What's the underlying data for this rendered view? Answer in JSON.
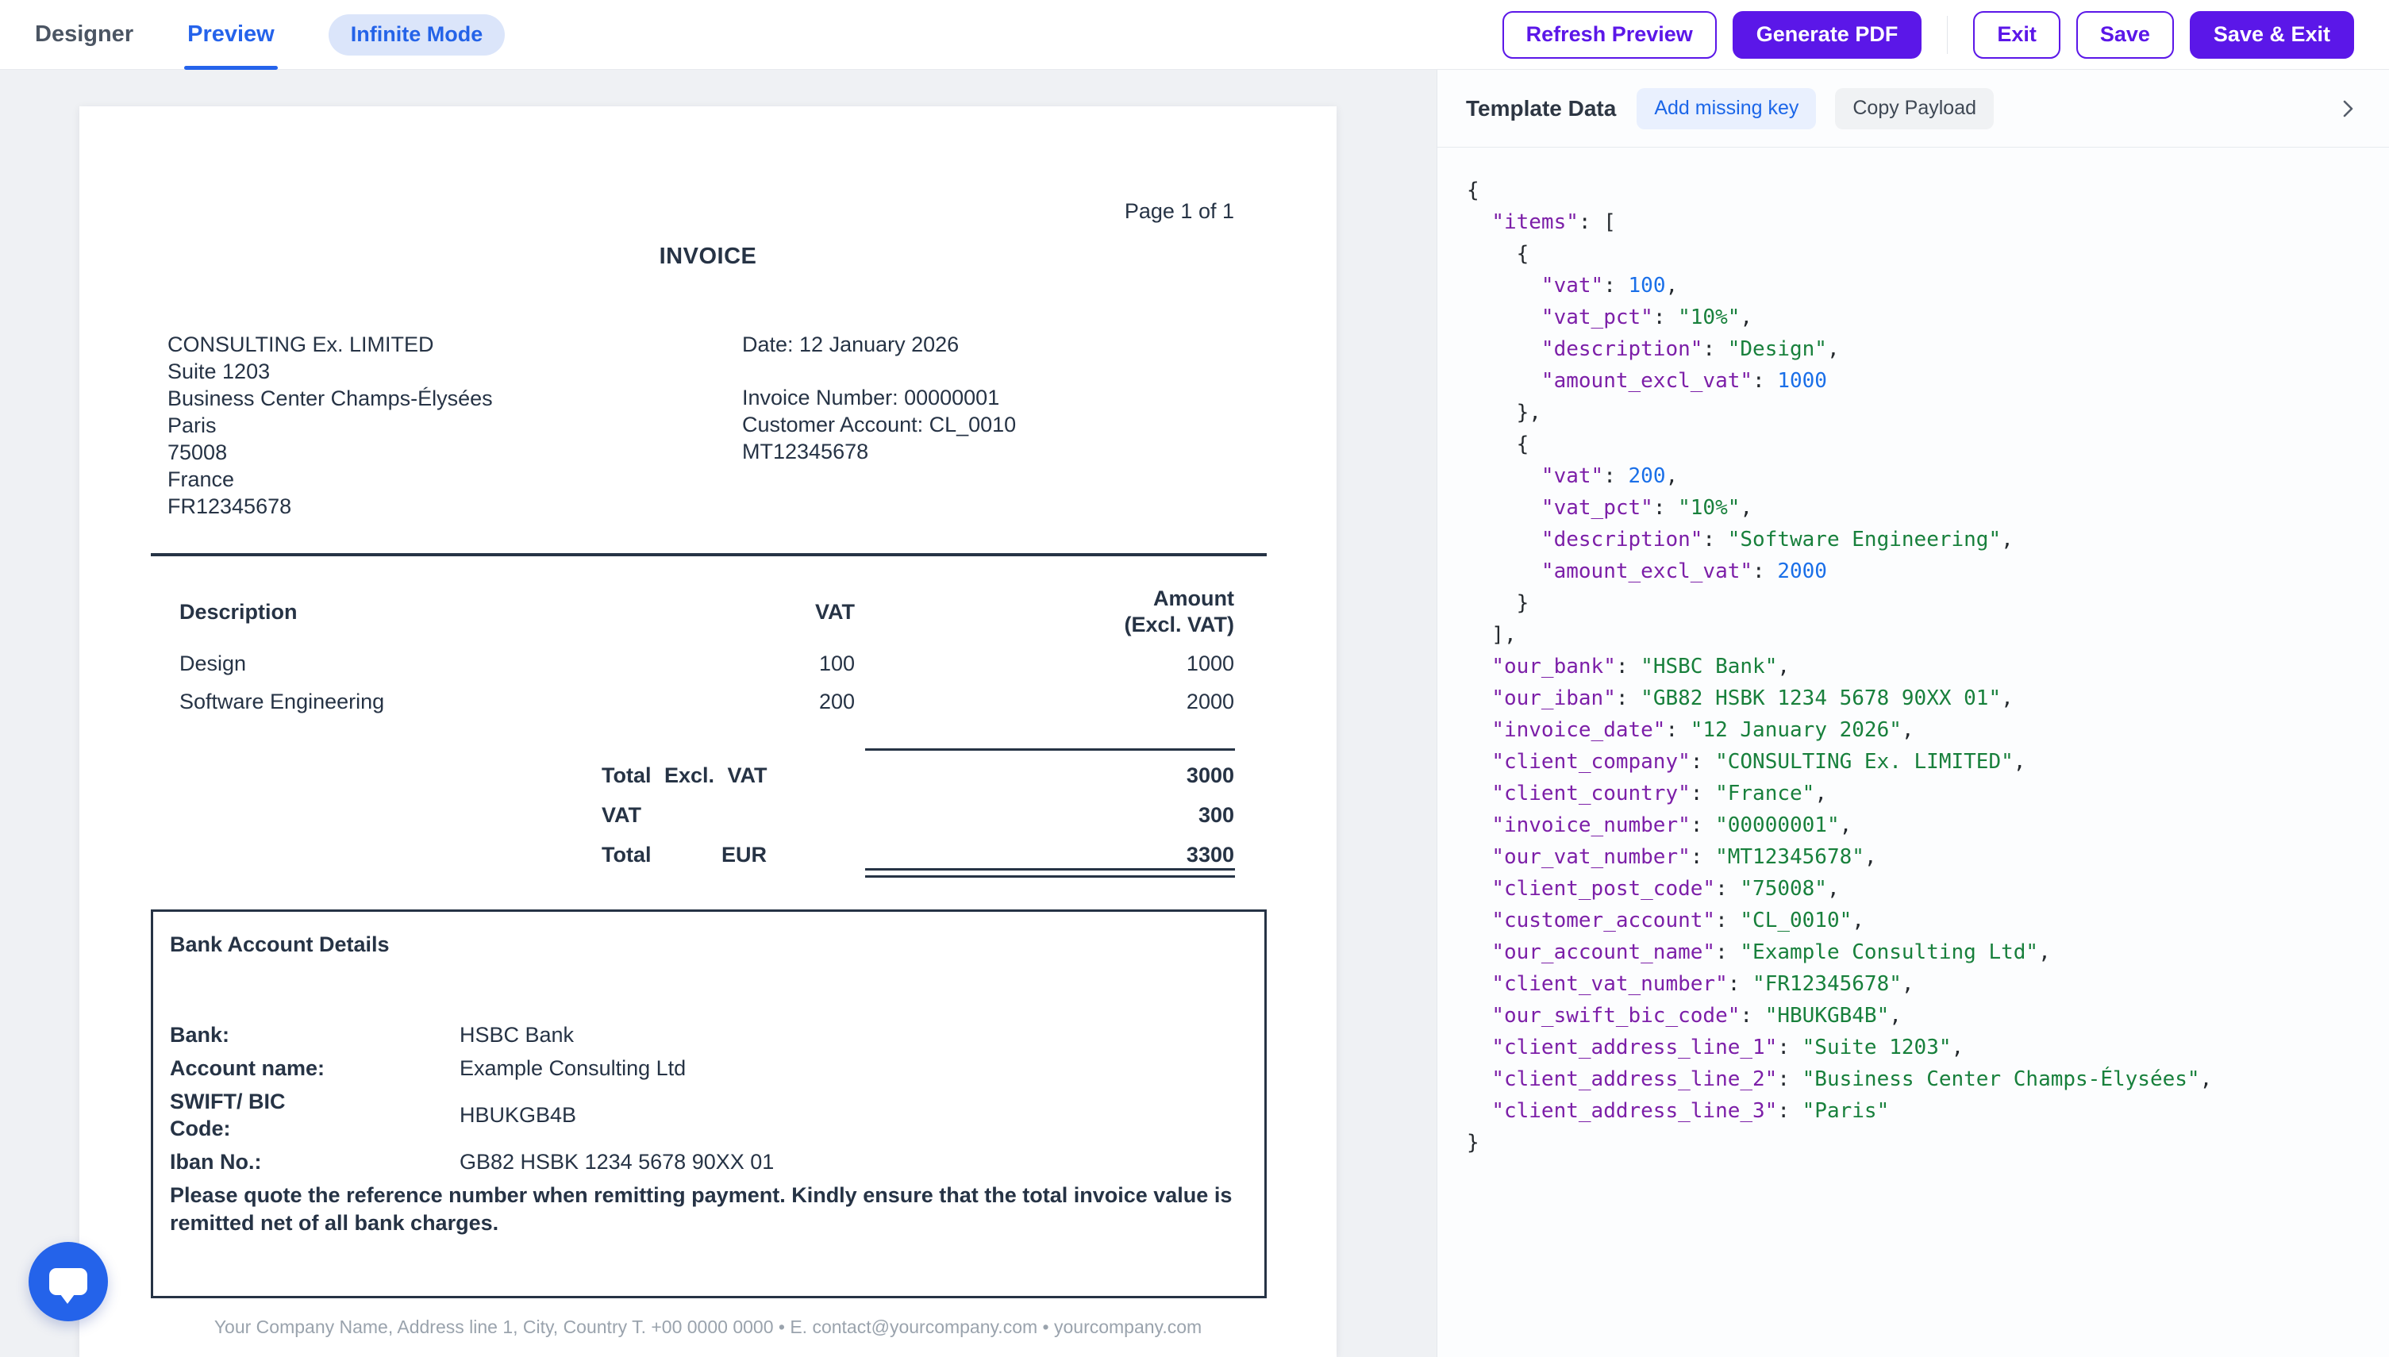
{
  "topbar": {
    "tabs": [
      {
        "label": "Designer",
        "active": false
      },
      {
        "label": "Preview",
        "active": true
      }
    ],
    "infinite_mode_label": "Infinite Mode",
    "actions": {
      "refresh_preview": "Refresh Preview",
      "generate_pdf": "Generate PDF",
      "exit": "Exit",
      "save": "Save",
      "save_and_exit": "Save & Exit"
    }
  },
  "colors": {
    "accent_purple": "#5b17e8",
    "accent_blue": "#2563eb",
    "json_key": "#7c1fa8",
    "json_string": "#18803c",
    "json_number": "#1a6fe8",
    "invoice_text": "#263345"
  },
  "invoice": {
    "page_indicator": "Page 1 of 1",
    "title": "INVOICE",
    "client_address": [
      "CONSULTING Ex. LIMITED",
      "Suite 1203",
      "Business Center Champs-Élysées",
      "Paris",
      "75008",
      "France",
      "FR12345678"
    ],
    "meta": {
      "date": "Date: 12 January 2026",
      "lines": [
        "Invoice Number: 00000001",
        "Customer Account: CL_0010",
        "MT12345678"
      ]
    },
    "table": {
      "headers": {
        "description": "Description",
        "vat": "VAT",
        "amount_line1": "Amount",
        "amount_line2": "(Excl. VAT)"
      },
      "rows": [
        {
          "description": "Design",
          "vat": "100",
          "amount": "1000"
        },
        {
          "description": "Software Engineering",
          "vat": "200",
          "amount": "2000"
        }
      ]
    },
    "totals": [
      {
        "label": "Total Excl. VAT",
        "currency": "",
        "value": "3000"
      },
      {
        "label": "VAT",
        "currency": "",
        "value": "300"
      },
      {
        "label": "Total",
        "currency": "EUR",
        "value": "3300"
      }
    ],
    "bank_box": {
      "title": "Bank Account Details",
      "rows": [
        {
          "label": "Bank:",
          "value": "HSBC Bank"
        },
        {
          "label": "Account name:",
          "value": "Example Consulting Ltd"
        },
        {
          "label": "SWIFT/ BIC Code:",
          "value": "HBUKGB4B"
        },
        {
          "label": "Iban No.:",
          "value": "GB82 HSBK 1234 5678 90XX 01"
        }
      ],
      "note": "Please quote the reference number when remitting payment. Kindly ensure that the total invoice value is remitted net of all bank charges."
    },
    "footer": "Your Company Name, Address line 1, City, Country T. +00 0000 0000 • E. contact@yourcompany.com • yourcompany.com"
  },
  "panel": {
    "title": "Template Data",
    "add_missing_key": "Add missing key",
    "copy_payload": "Copy Payload",
    "payload": {
      "items": [
        {
          "vat": 100,
          "vat_pct": "10%",
          "description": "Design",
          "amount_excl_vat": 1000
        },
        {
          "vat": 200,
          "vat_pct": "10%",
          "description": "Software Engineering",
          "amount_excl_vat": 2000
        }
      ],
      "our_bank": "HSBC Bank",
      "our_iban": "GB82 HSBK 1234 5678 90XX 01",
      "invoice_date": "12 January 2026",
      "client_company": "CONSULTING Ex. LIMITED",
      "client_country": "France",
      "invoice_number": "00000001",
      "our_vat_number": "MT12345678",
      "client_post_code": "75008",
      "customer_account": "CL_0010",
      "our_account_name": "Example Consulting Ltd",
      "client_vat_number": "FR12345678",
      "our_swift_bic_code": "HBUKGB4B",
      "client_address_line_1": "Suite 1203",
      "client_address_line_2": "Business Center Champs-Élysées",
      "client_address_line_3": "Paris"
    }
  }
}
